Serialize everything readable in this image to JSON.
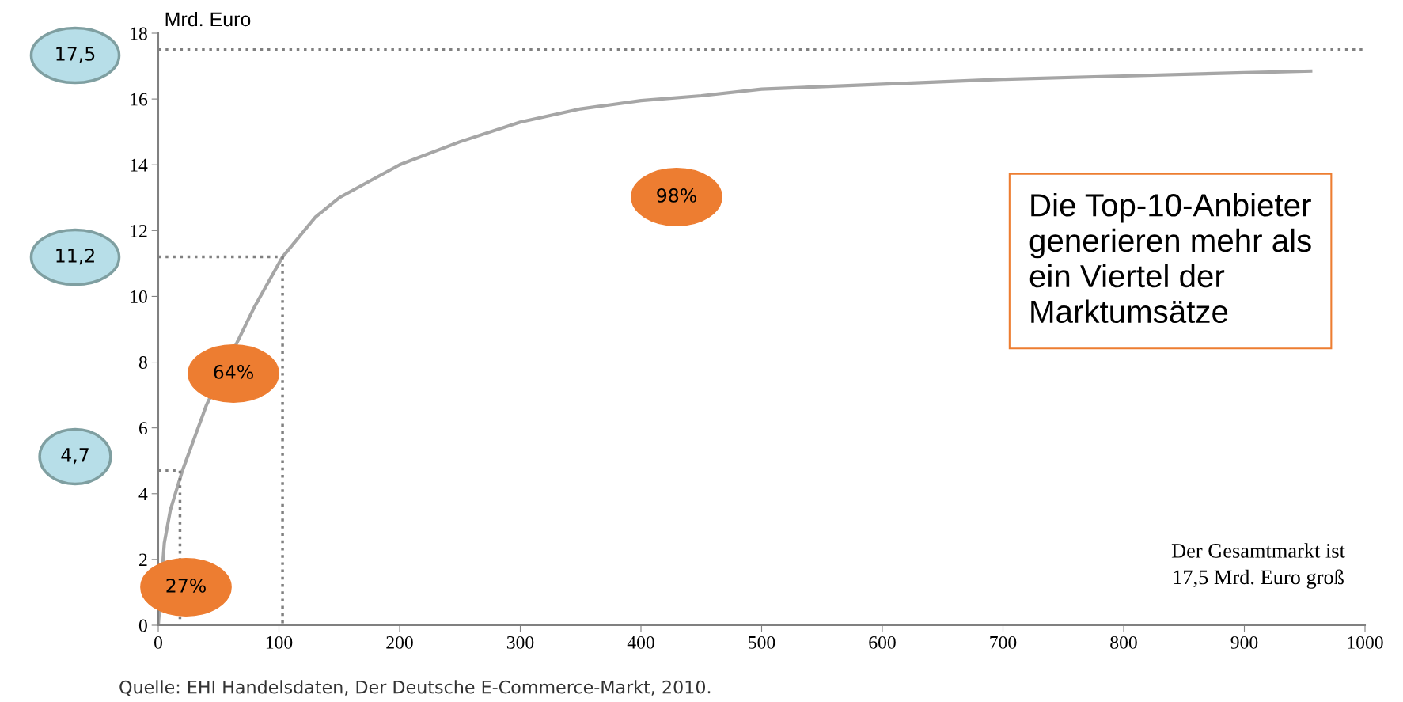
{
  "chart_data": {
    "type": "line",
    "ylabel": "Mrd. Euro",
    "xlim": [
      0,
      1000
    ],
    "ylim": [
      0,
      18
    ],
    "xticks": [
      0,
      100,
      200,
      300,
      400,
      500,
      600,
      700,
      800,
      900,
      1000
    ],
    "yticks": [
      0,
      2,
      4,
      6,
      8,
      10,
      12,
      14,
      16,
      18
    ],
    "grid": false,
    "legend": false,
    "series": [
      {
        "color": "#a6a6a6",
        "line_style": "solid",
        "x": [
          0,
          5,
          10,
          20,
          40,
          80,
          103,
          130,
          150,
          200,
          250,
          300,
          350,
          400,
          450,
          500,
          600,
          700,
          800,
          900,
          955
        ],
        "values": [
          0,
          2.5,
          3.5,
          4.7,
          6.7,
          9.7,
          11.2,
          12.4,
          13.0,
          14.0,
          14.7,
          15.3,
          15.7,
          15.95,
          16.1,
          16.3,
          16.45,
          16.6,
          16.7,
          16.8,
          16.85
        ]
      },
      {
        "color": "#808080",
        "line_style": "dotted",
        "x": [
          0,
          18,
          18
        ],
        "values": [
          4.7,
          4.7,
          0
        ]
      },
      {
        "color": "#808080",
        "line_style": "dotted",
        "x": [
          0,
          103,
          103
        ],
        "values": [
          11.2,
          11.2,
          0
        ]
      }
    ],
    "ref_lines": [
      {
        "axis": "y",
        "value": 17.5,
        "color": "#808080",
        "line_style": "dotted"
      }
    ],
    "annotations": [
      "Die Top-10-Anbieter\ngenerieren mehr als\nein Viertel der\nMarktumsätze",
      "Der Gesamtmarkt ist\n17,5 Mrd. Euro groß",
      "Quelle: EHI Handelsdaten, Der Deutsche E-Commerce-Markt, 2010.",
      "17,5",
      "11,2",
      "4,7",
      "27%",
      "64%",
      "98%"
    ]
  }
}
